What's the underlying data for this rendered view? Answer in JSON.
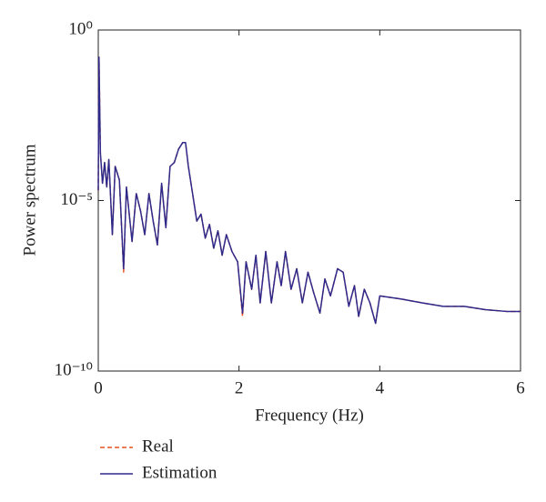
{
  "chart_data": {
    "type": "line",
    "xlabel": "Frequency (Hz)",
    "ylabel": "Power spectrum",
    "yscale": "log",
    "xlim": [
      0,
      6
    ],
    "xticks": [
      0,
      2,
      4,
      6
    ],
    "ylim": [
      1e-10,
      1
    ],
    "yticks": [
      {
        "value": 1e-10,
        "label": "10⁻¹⁰"
      },
      {
        "value": 1e-05,
        "label": "10⁻⁵"
      },
      {
        "value": 1,
        "label": "10⁰"
      }
    ],
    "legend": "bottom",
    "x": [
      0,
      0.01,
      0.03,
      0.06,
      0.09,
      0.12,
      0.15,
      0.2,
      0.24,
      0.3,
      0.36,
      0.4,
      0.48,
      0.54,
      0.6,
      0.66,
      0.72,
      0.78,
      0.84,
      0.9,
      0.96,
      1.02,
      1.08,
      1.14,
      1.2,
      1.24,
      1.28,
      1.34,
      1.4,
      1.46,
      1.52,
      1.58,
      1.64,
      1.7,
      1.76,
      1.82,
      1.9,
      1.98,
      2.05,
      2.1,
      2.18,
      2.24,
      2.3,
      2.38,
      2.46,
      2.54,
      2.6,
      2.66,
      2.74,
      2.82,
      2.9,
      2.98,
      3.06,
      3.15,
      3.22,
      3.3,
      3.4,
      3.48,
      3.56,
      3.64,
      3.7,
      3.78,
      3.86,
      3.94,
      4.0,
      4.3,
      4.6,
      4.9,
      5.2,
      5.5,
      5.8,
      6.0
    ],
    "series": [
      {
        "name": "Real",
        "color": "#e8541e",
        "dash": true,
        "values": [
          2e-05,
          0.16,
          0.00025,
          3.2e-05,
          0.00013,
          2.5e-05,
          0.00016,
          1e-06,
          0.0001,
          4e-05,
          8e-08,
          2.5e-05,
          6.3e-07,
          1.6e-05,
          5e-06,
          1e-06,
          1.6e-05,
          2.5e-06,
          5e-07,
          3.2e-05,
          1.6e-06,
          0.0001,
          0.00013,
          0.00032,
          0.0005,
          0.0005,
          0.0001,
          1.6e-05,
          2.5e-06,
          4e-06,
          7.9e-07,
          2e-06,
          4e-07,
          1.3e-06,
          2.5e-07,
          1e-06,
          3.2e-07,
          1.6e-07,
          4e-09,
          1.6e-07,
          2.5e-08,
          2.5e-07,
          1e-08,
          3.2e-07,
          1e-08,
          1.6e-07,
          3.2e-08,
          3.2e-07,
          2.5e-08,
          1e-07,
          1e-08,
          7.9e-08,
          2e-08,
          5e-09,
          5e-08,
          1.6e-08,
          1e-07,
          7.9e-08,
          7.9e-09,
          3.2e-08,
          4e-09,
          2.5e-08,
          1e-08,
          2.5e-09,
          1.6e-08,
          1.3e-08,
          1e-08,
          7.9e-09,
          7.9e-09,
          6.3e-09,
          5.6e-09,
          5.6e-09
        ]
      },
      {
        "name": "Estimation",
        "color": "#2e2a8c",
        "values": [
          2e-05,
          0.16,
          0.00025,
          3.2e-05,
          0.00013,
          2.5e-05,
          0.00016,
          1e-06,
          0.0001,
          4e-05,
          1e-07,
          2.5e-05,
          6.3e-07,
          1.6e-05,
          5e-06,
          1e-06,
          1.6e-05,
          2.5e-06,
          5e-07,
          3.2e-05,
          1.6e-06,
          0.0001,
          0.00013,
          0.00032,
          0.0005,
          0.0005,
          0.0001,
          1.6e-05,
          2.5e-06,
          4e-06,
          7.9e-07,
          2e-06,
          4e-07,
          1.3e-06,
          2.5e-07,
          1e-06,
          3.2e-07,
          1.6e-07,
          5e-09,
          1.6e-07,
          2.5e-08,
          2.5e-07,
          1e-08,
          3.2e-07,
          1e-08,
          1.6e-07,
          3.2e-08,
          3.2e-07,
          2.5e-08,
          1e-07,
          1e-08,
          7.9e-08,
          2e-08,
          5e-09,
          5e-08,
          1.6e-08,
          1e-07,
          7.9e-08,
          7.9e-09,
          3.2e-08,
          4e-09,
          2.5e-08,
          1e-08,
          2.5e-09,
          1.6e-08,
          1.3e-08,
          1e-08,
          7.9e-09,
          7.9e-09,
          6.3e-09,
          5.6e-09,
          5.6e-09
        ]
      }
    ]
  }
}
